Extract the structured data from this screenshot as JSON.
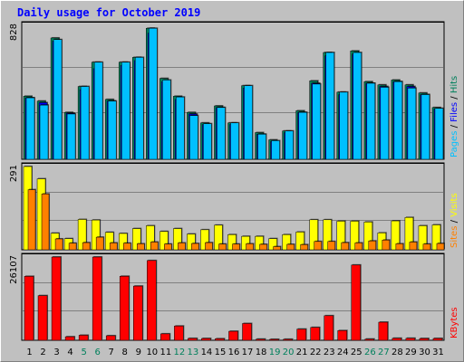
{
  "chart_data": {
    "type": "bar",
    "title": "Daily usage for October 2019",
    "categories": [
      "1",
      "2",
      "3",
      "4",
      "5",
      "6",
      "7",
      "8",
      "9",
      "10",
      "11",
      "12",
      "13",
      "14",
      "15",
      "16",
      "17",
      "18",
      "19",
      "20",
      "21",
      "22",
      "23",
      "24",
      "25",
      "26",
      "27",
      "28",
      "29",
      "30",
      "31"
    ],
    "weekend_days": [
      5,
      6,
      12,
      13,
      19,
      20,
      26,
      27
    ],
    "colors": {
      "hits": "#00805c",
      "files": "#0000ff",
      "pages": "#00c0ff",
      "visits": "#ffff00",
      "sites": "#ff8000",
      "kbytes": "#ff0000",
      "weekday_label": "#000000",
      "weekend_label": "#00805c"
    },
    "panels": [
      {
        "max_label": "828",
        "ylim": [
          0,
          828
        ],
        "series": [
          {
            "name": "Hits",
            "values": [
              390,
              360,
              750,
              290,
              450,
              600,
              370,
              600,
              630,
              810,
              500,
              390,
              290,
              225,
              330,
              225,
              455,
              165,
              120,
              175,
              300,
              485,
              660,
              415,
              670,
              480,
              460,
              490,
              460,
              410,
              320
            ]
          },
          {
            "name": "Files",
            "values": [
              380,
              350,
              730,
              285,
              430,
              560,
              360,
              580,
              610,
              780,
              480,
              370,
              280,
              215,
              320,
              215,
              440,
              155,
              110,
              165,
              290,
              470,
              640,
              400,
              650,
              470,
              450,
              480,
              450,
              400,
              310
            ]
          },
          {
            "name": "Pages",
            "values": [
              380,
              335,
              740,
              280,
              450,
              600,
              360,
              600,
              630,
              810,
              490,
              385,
              270,
              220,
              320,
              225,
              455,
              155,
              115,
              175,
              290,
              465,
              660,
              415,
              660,
              470,
              445,
              480,
              440,
              400,
              315
            ]
          }
        ]
      },
      {
        "max_label": "291",
        "ylim": [
          0,
          291
        ],
        "series": [
          {
            "name": "Visits",
            "values": [
              291,
              248,
              58,
              39,
              106,
              104,
              61,
              57,
              74,
              84,
              64,
              74,
              55,
              70,
              86,
              53,
              47,
              47,
              39,
              53,
              62,
              105,
              105,
              100,
              100,
              97,
              59,
              101,
              113,
              84,
              87
            ]
          },
          {
            "name": "Sites",
            "values": [
              210,
              195,
              38,
              23,
              25,
              44,
              24,
              23,
              21,
              27,
              20,
              24,
              22,
              25,
              20,
              20,
              21,
              19,
              11,
              19,
              18,
              29,
              29,
              25,
              24,
              31,
              34,
              21,
              27,
              20,
              22
            ]
          }
        ]
      },
      {
        "max_label": "26107",
        "ylim": [
          0,
          26107
        ],
        "series": [
          {
            "name": "KBytes",
            "values": [
              20050,
              14000,
              26107,
              1110,
              1580,
              26107,
              1430,
              20080,
              17000,
              25000,
              2020,
              4480,
              590,
              570,
              500,
              2820,
              5260,
              360,
              300,
              320,
              3500,
              4030,
              7700,
              3040,
              23600,
              380,
              5670,
              630,
              630,
              560,
              580
            ]
          }
        ]
      }
    ],
    "legends": [
      {
        "parts": [
          {
            "text": "Pages",
            "color": "#00c0ff"
          },
          {
            "text": " / ",
            "color": "#000000"
          },
          {
            "text": "Files",
            "color": "#0000ff"
          },
          {
            "text": " / ",
            "color": "#000000"
          },
          {
            "text": "Hits",
            "color": "#00805c"
          }
        ]
      },
      {
        "parts": [
          {
            "text": "Sites",
            "color": "#ff8000"
          },
          {
            "text": " / ",
            "color": "#000000"
          },
          {
            "text": "Visits",
            "color": "#ffff00"
          }
        ]
      },
      {
        "parts": [
          {
            "text": "KBytes",
            "color": "#ff0000"
          }
        ]
      }
    ],
    "grid": true
  }
}
